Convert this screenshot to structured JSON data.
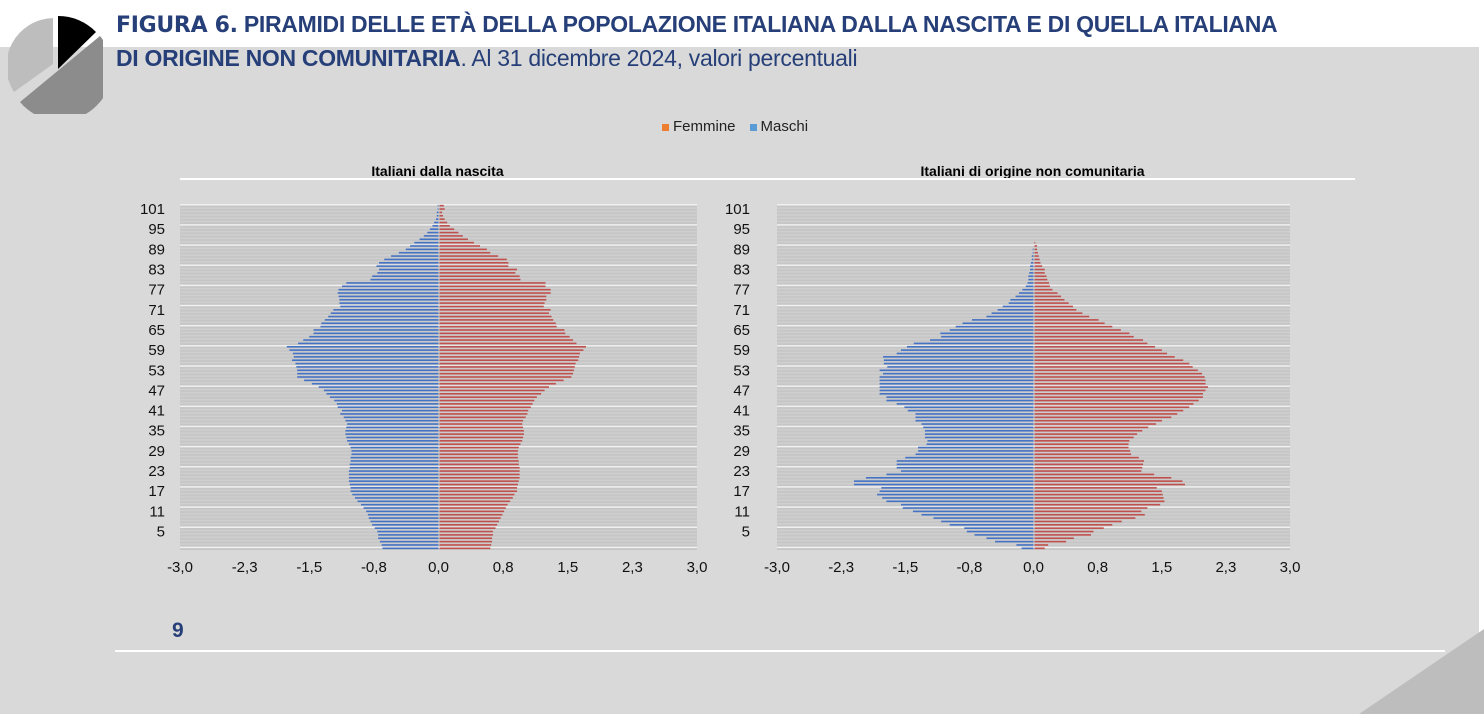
{
  "title": {
    "figure_label": "FIGURA 6.",
    "bold_text_1": "PIRAMIDI DELLE ETÀ DELLA POPOLAZIONE ITALIANA DALLA NASCITA E DI QUELLA ITALIANA",
    "bold_text_2": "DI ORIGINE NON COMUNITARIA",
    "normal_text": ". Al 31 dicembre 2024, valori percentuali"
  },
  "legend": [
    {
      "label": "Femmine",
      "color": "#ed7d31"
    },
    {
      "label": "Maschi",
      "color": "#5b9bd5"
    }
  ],
  "page_number": "9",
  "colors": {
    "male_bar": "#4472c4",
    "female_bar": "#c0504d",
    "title": "#263f78"
  },
  "chart_data": [
    {
      "type": "bar",
      "orientation": "horizontal-pyramid",
      "title": "Italiani dalla nascita",
      "age_range": [
        0,
        102
      ],
      "y_tick_labels": [
        "5",
        "11",
        "17",
        "23",
        "29",
        "35",
        "41",
        "47",
        "53",
        "59",
        "65",
        "71",
        "77",
        "83",
        "89",
        "95",
        "101"
      ],
      "x_tick_labels": [
        "-3,0",
        "-2,3",
        "-1,5",
        "-0,8",
        "0,0",
        "0,8",
        "1,5",
        "2,3",
        "3,0"
      ],
      "xlim": [
        -3,
        3
      ],
      "series": [
        {
          "name": "Maschi",
          "values": [
            0.65,
            0.66,
            0.68,
            0.7,
            0.7,
            0.71,
            0.74,
            0.77,
            0.79,
            0.81,
            0.82,
            0.84,
            0.87,
            0.9,
            0.94,
            0.97,
            1.0,
            1.02,
            1.02,
            1.03,
            1.04,
            1.04,
            1.04,
            1.04,
            1.03,
            1.03,
            1.02,
            1.02,
            1.01,
            1.01,
            1.02,
            1.04,
            1.06,
            1.07,
            1.08,
            1.08,
            1.07,
            1.06,
            1.08,
            1.1,
            1.14,
            1.12,
            1.17,
            1.18,
            1.21,
            1.26,
            1.3,
            1.33,
            1.39,
            1.47,
            1.56,
            1.64,
            1.64,
            1.64,
            1.65,
            1.66,
            1.7,
            1.68,
            1.69,
            1.73,
            1.76,
            1.63,
            1.57,
            1.5,
            1.45,
            1.45,
            1.37,
            1.36,
            1.32,
            1.28,
            1.25,
            1.22,
            1.14,
            1.15,
            1.15,
            1.16,
            1.17,
            1.16,
            1.12,
            1.07,
            0.79,
            0.77,
            0.71,
            0.69,
            0.72,
            0.69,
            0.63,
            0.55,
            0.46,
            0.38,
            0.33,
            0.28,
            0.22,
            0.17,
            0.13,
            0.1,
            0.07,
            0.05,
            0.03,
            0.02,
            0.02,
            0.01,
            0.01
          ]
        },
        {
          "name": "Femmine",
          "values": [
            0.59,
            0.6,
            0.61,
            0.61,
            0.62,
            0.62,
            0.65,
            0.67,
            0.69,
            0.71,
            0.73,
            0.75,
            0.77,
            0.79,
            0.82,
            0.85,
            0.87,
            0.9,
            0.9,
            0.91,
            0.92,
            0.93,
            0.93,
            0.93,
            0.93,
            0.92,
            0.92,
            0.91,
            0.91,
            0.91,
            0.92,
            0.94,
            0.96,
            0.97,
            0.98,
            0.98,
            0.97,
            0.96,
            0.97,
            1.0,
            1.02,
            1.03,
            1.06,
            1.08,
            1.1,
            1.13,
            1.18,
            1.22,
            1.27,
            1.35,
            1.44,
            1.53,
            1.55,
            1.56,
            1.57,
            1.58,
            1.61,
            1.62,
            1.63,
            1.67,
            1.7,
            1.59,
            1.55,
            1.51,
            1.46,
            1.45,
            1.36,
            1.35,
            1.32,
            1.3,
            1.27,
            1.29,
            1.21,
            1.22,
            1.24,
            1.24,
            1.29,
            1.29,
            1.23,
            1.23,
            0.94,
            0.93,
            0.88,
            0.9,
            0.8,
            0.8,
            0.78,
            0.68,
            0.59,
            0.55,
            0.47,
            0.4,
            0.33,
            0.27,
            0.22,
            0.17,
            0.12,
            0.09,
            0.06,
            0.04,
            0.03,
            0.06,
            0.05
          ]
        }
      ]
    },
    {
      "type": "bar",
      "orientation": "horizontal-pyramid",
      "title": "Italiani di origine non comunitaria",
      "age_range": [
        0,
        102
      ],
      "y_tick_labels": [
        "5",
        "11",
        "17",
        "23",
        "29",
        "35",
        "41",
        "47",
        "53",
        "59",
        "65",
        "71",
        "77",
        "83",
        "89",
        "95",
        "101"
      ],
      "x_tick_labels": [
        "-3,0",
        "-2,3",
        "-1,5",
        "-0,8",
        "0,0",
        "0,8",
        "1,5",
        "2,3",
        "3,0"
      ],
      "xlim": [
        -3,
        3
      ],
      "series": [
        {
          "name": "Maschi",
          "values": [
            0.14,
            0.2,
            0.45,
            0.55,
            0.69,
            0.78,
            0.81,
            0.98,
            1.08,
            1.17,
            1.31,
            1.41,
            1.53,
            1.55,
            1.72,
            1.77,
            1.83,
            1.8,
            1.78,
            2.1,
            2.1,
            1.96,
            1.72,
            1.55,
            1.6,
            1.6,
            1.6,
            1.5,
            1.38,
            1.35,
            1.35,
            1.25,
            1.24,
            1.27,
            1.27,
            1.27,
            1.29,
            1.31,
            1.38,
            1.38,
            1.38,
            1.47,
            1.51,
            1.6,
            1.72,
            1.72,
            1.8,
            1.8,
            1.8,
            1.8,
            1.8,
            1.8,
            1.76,
            1.8,
            1.71,
            1.75,
            1.75,
            1.76,
            1.6,
            1.55,
            1.48,
            1.4,
            1.21,
            1.08,
            1.09,
            0.98,
            0.91,
            0.83,
            0.72,
            0.55,
            0.49,
            0.42,
            0.36,
            0.29,
            0.27,
            0.21,
            0.17,
            0.13,
            0.09,
            0.07,
            0.06,
            0.06,
            0.05,
            0.04,
            0.04,
            0.03,
            0.02,
            0.02,
            0.01,
            0.01,
            0,
            0,
            0,
            0,
            0,
            0,
            0,
            0,
            0,
            0,
            0,
            0,
            0
          ]
        },
        {
          "name": "Femmine",
          "values": [
            0.12,
            0.16,
            0.37,
            0.46,
            0.66,
            0.69,
            0.81,
            0.91,
            1.02,
            1.18,
            1.29,
            1.25,
            1.32,
            1.47,
            1.52,
            1.51,
            1.5,
            1.49,
            1.43,
            1.76,
            1.73,
            1.6,
            1.4,
            1.25,
            1.26,
            1.27,
            1.28,
            1.22,
            1.13,
            1.12,
            1.1,
            1.1,
            1.11,
            1.16,
            1.2,
            1.26,
            1.33,
            1.42,
            1.49,
            1.6,
            1.67,
            1.74,
            1.81,
            1.86,
            1.92,
            1.97,
            1.97,
            2.0,
            2.03,
            2.0,
            2.0,
            1.99,
            1.96,
            1.91,
            1.85,
            1.81,
            1.74,
            1.64,
            1.55,
            1.49,
            1.41,
            1.32,
            1.27,
            1.16,
            1.11,
            1.01,
            0.91,
            0.82,
            0.75,
            0.64,
            0.56,
            0.49,
            0.45,
            0.4,
            0.35,
            0.31,
            0.27,
            0.21,
            0.18,
            0.17,
            0.15,
            0.14,
            0.12,
            0.12,
            0.09,
            0.07,
            0.06,
            0.05,
            0.04,
            0.03,
            0.03,
            0.01,
            0,
            0,
            0,
            0,
            0,
            0,
            0,
            0,
            0,
            0,
            0
          ]
        }
      ]
    }
  ]
}
